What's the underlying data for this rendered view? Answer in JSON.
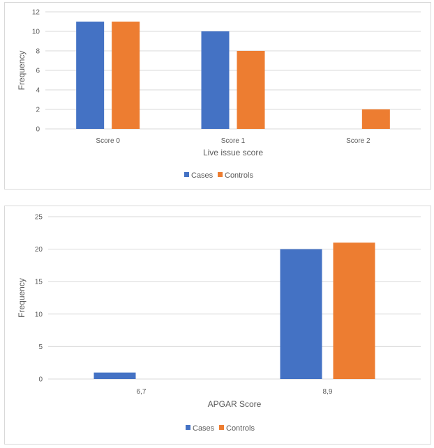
{
  "colors": {
    "cases": "#4472C4",
    "controls": "#ED7D31",
    "grid": "#d9d9d9",
    "text": "#595959"
  },
  "chart_data": [
    {
      "type": "bar",
      "title": "",
      "categories": [
        "Score 0",
        "Score 1",
        "Score 2"
      ],
      "series": [
        {
          "name": "Cases",
          "values": [
            11,
            10,
            0
          ]
        },
        {
          "name": "Controls",
          "values": [
            11,
            8,
            2
          ]
        }
      ],
      "xlabel": "Live issue score",
      "ylabel": "Frequency",
      "ylim": [
        0,
        12
      ],
      "yticks": [
        0,
        2,
        4,
        6,
        8,
        10,
        12
      ],
      "grid": true,
      "legend": "bottom"
    },
    {
      "type": "bar",
      "title": "",
      "categories": [
        "6,7",
        "8,9"
      ],
      "series": [
        {
          "name": "Cases",
          "values": [
            1,
            20
          ]
        },
        {
          "name": "Controls",
          "values": [
            0,
            21
          ]
        }
      ],
      "xlabel": "APGAR Score",
      "ylabel": "Frequency",
      "ylim": [
        0,
        25
      ],
      "yticks": [
        0,
        5,
        10,
        15,
        20,
        25
      ],
      "grid": true,
      "legend": "bottom"
    }
  ]
}
